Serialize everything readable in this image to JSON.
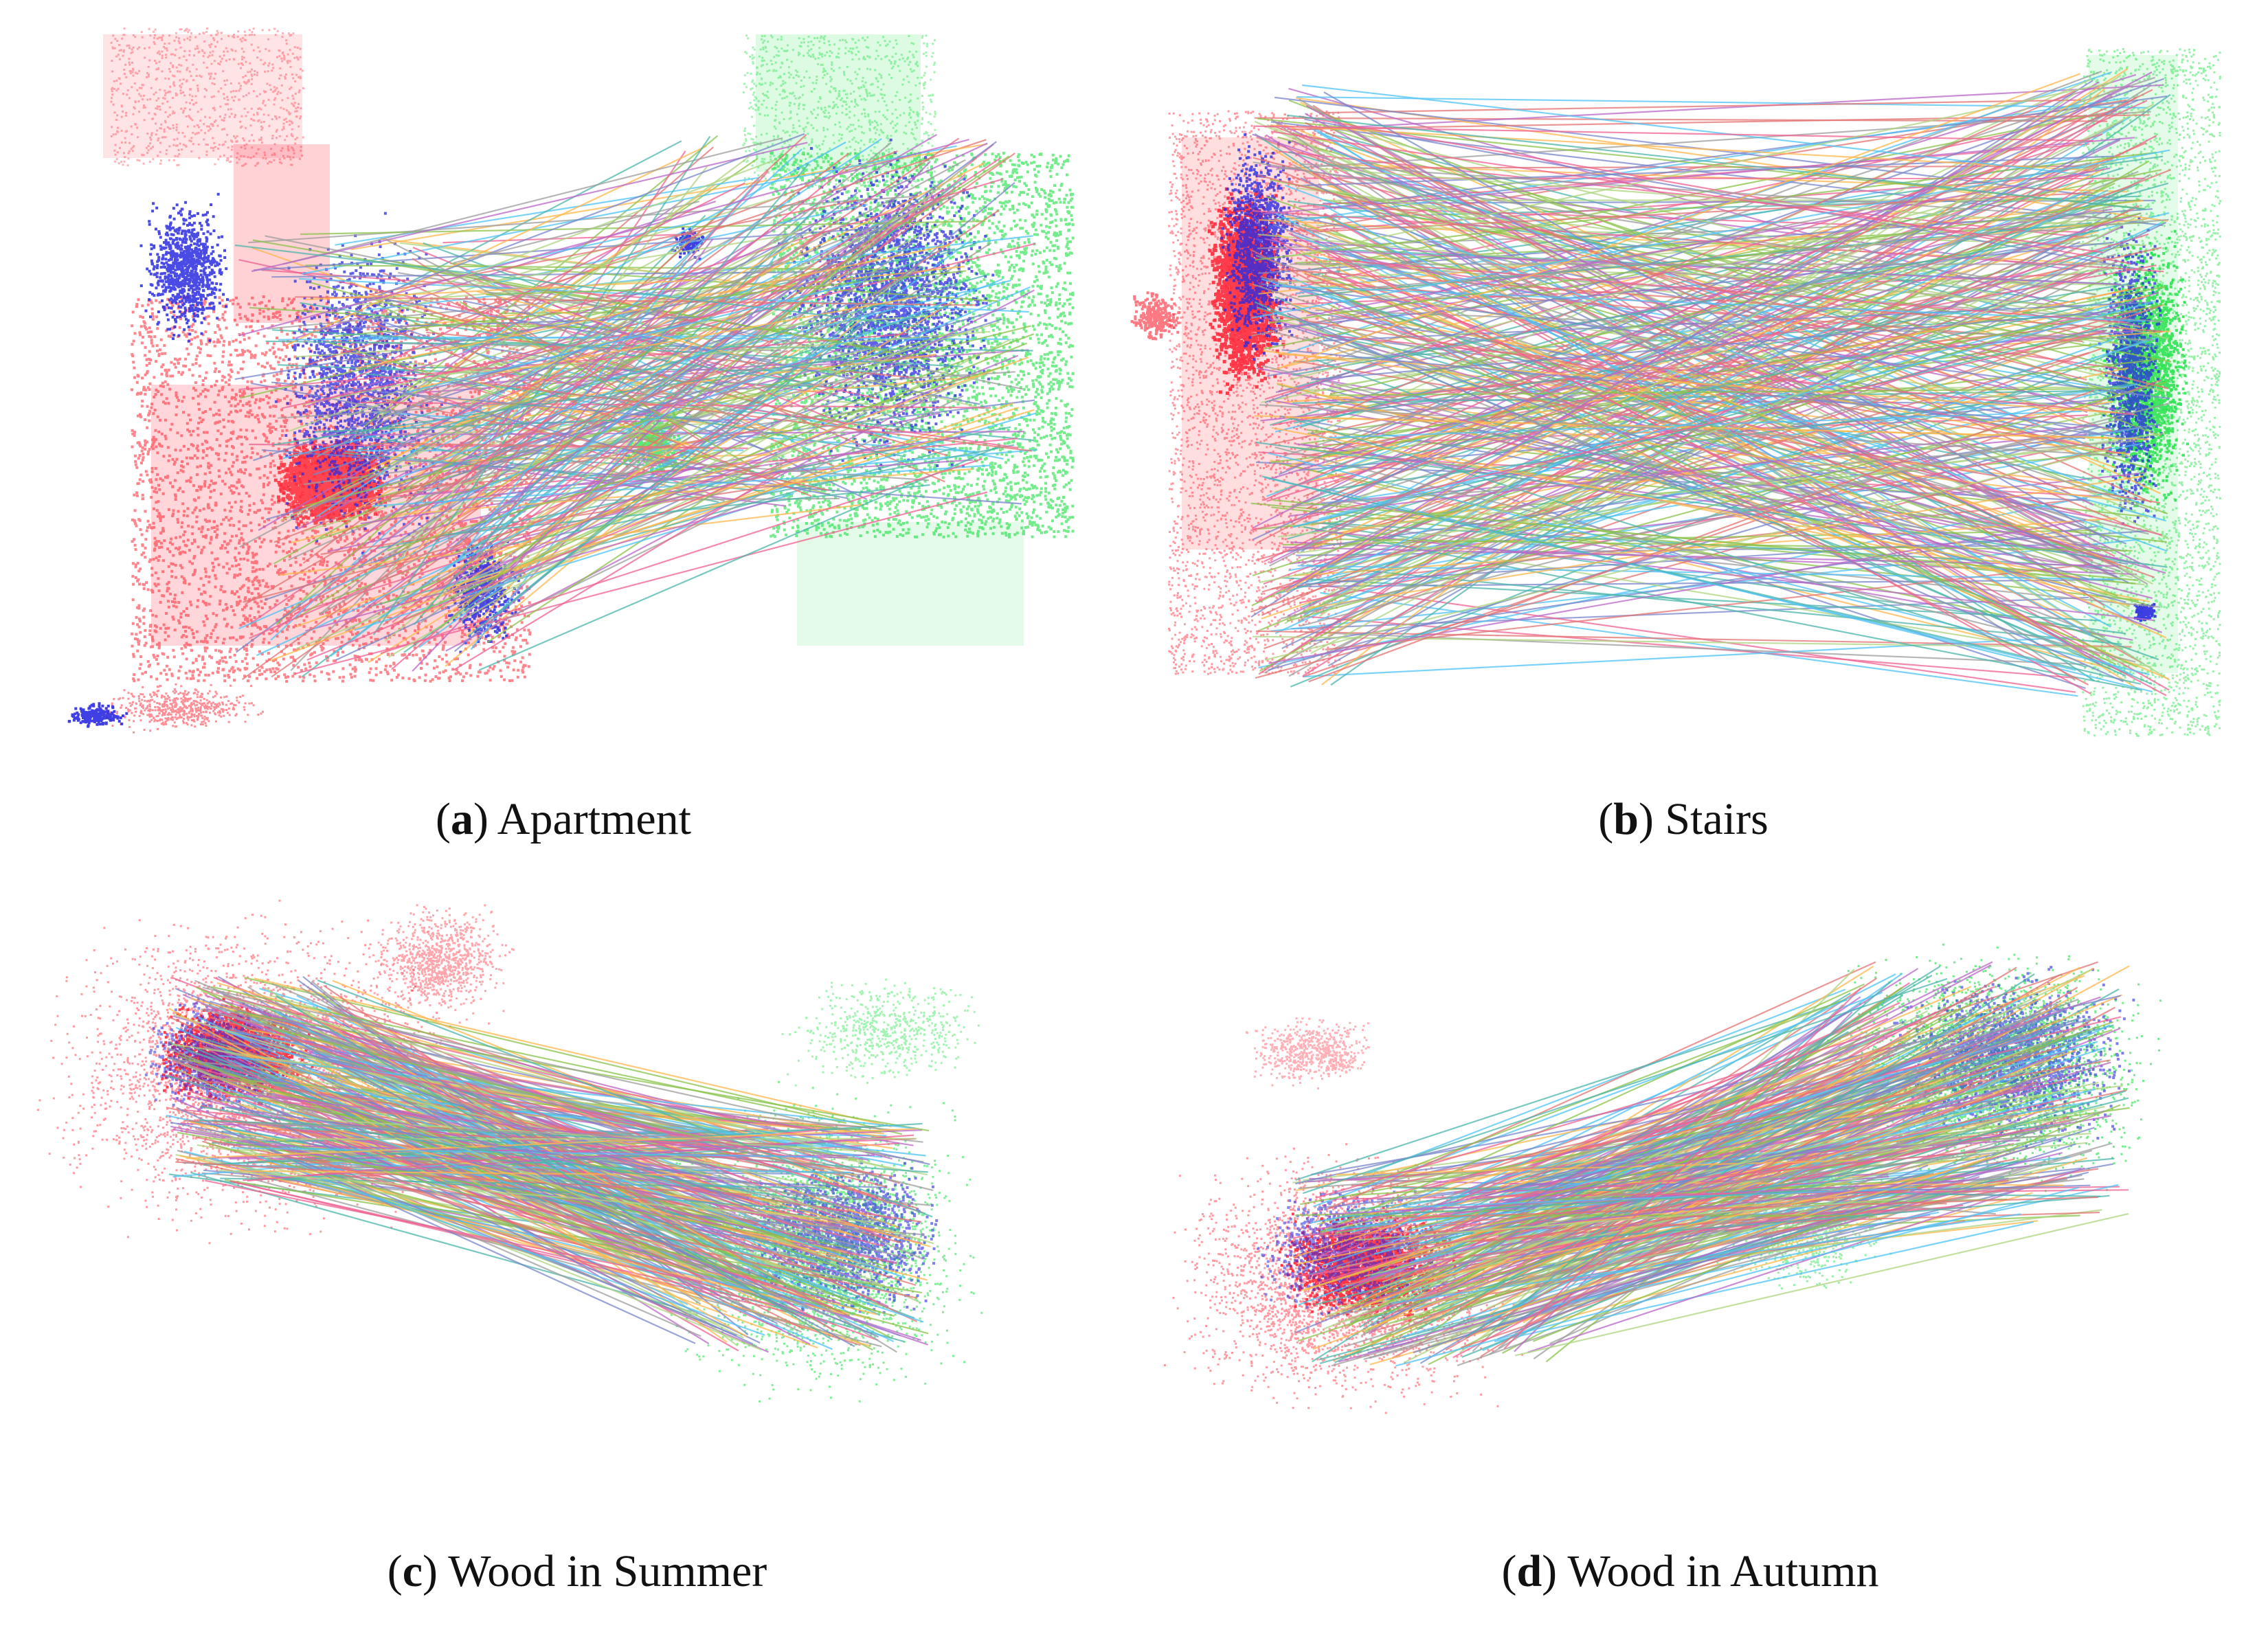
{
  "panels": [
    {
      "id": "a",
      "letter": "a",
      "caption": "Apartment"
    },
    {
      "id": "b",
      "letter": "b",
      "caption": "Stairs"
    },
    {
      "id": "c",
      "letter": "c",
      "caption": "Wood in Summer"
    },
    {
      "id": "d",
      "letter": "d",
      "caption": "Wood in Autumn"
    }
  ],
  "colors": {
    "source_cloud": "#ff2030",
    "target_cloud": "#18e040",
    "keypoints": "#2a2ae0",
    "correspondence_lines": [
      "#8bc34a",
      "#e57373",
      "#4fc3f7",
      "#ba68c8",
      "#ffb74d",
      "#7986cb",
      "#4db6ac",
      "#f06292",
      "#9e9e9e",
      "#aed581"
    ]
  }
}
